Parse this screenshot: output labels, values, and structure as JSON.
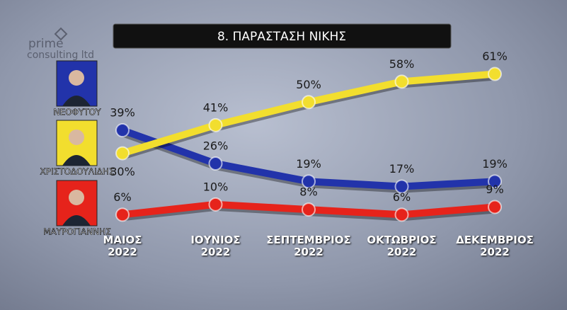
{
  "chart_data": {
    "type": "line",
    "title": "8. ΠΑΡΑΣΤΑΣΗ ΝΙΚΗΣ",
    "brand": [
      "prime",
      "consulting ltd"
    ],
    "categories": [
      "ΜΑΙΟΣ 2022",
      "ΙΟΥΝΙΟΣ 2022",
      "ΣΕΠΤΕΜΒΡΙΟΣ 2022",
      "ΟΚΤΩΒΡΙΟΣ 2022",
      "ΔΕΚΕΜΒΡΙΟΣ 2022"
    ],
    "series": [
      {
        "name": "ΝΕΟΦΥΤΟΥ",
        "color": "#2233aa",
        "values": [
          39,
          26,
          19,
          17,
          19
        ],
        "value_labels": [
          "39%",
          "26%",
          "19%",
          "17%",
          "19%"
        ]
      },
      {
        "name": "ΧΡΙΣΤΟΔΟΥΛΙΔΗΣ",
        "color": "#f2de2e",
        "values": [
          30,
          41,
          50,
          58,
          61
        ],
        "value_labels": [
          "30%",
          "41%",
          "50%",
          "58%",
          "61%"
        ]
      },
      {
        "name": "ΜΑΥΡΟΓΙΑΝΝΗΣ",
        "color": "#e6231b",
        "values": [
          6,
          10,
          8,
          6,
          9
        ],
        "value_labels": [
          "6%",
          "10%",
          "8%",
          "6%",
          "9%"
        ]
      }
    ],
    "ylim": [
      0,
      70
    ]
  }
}
